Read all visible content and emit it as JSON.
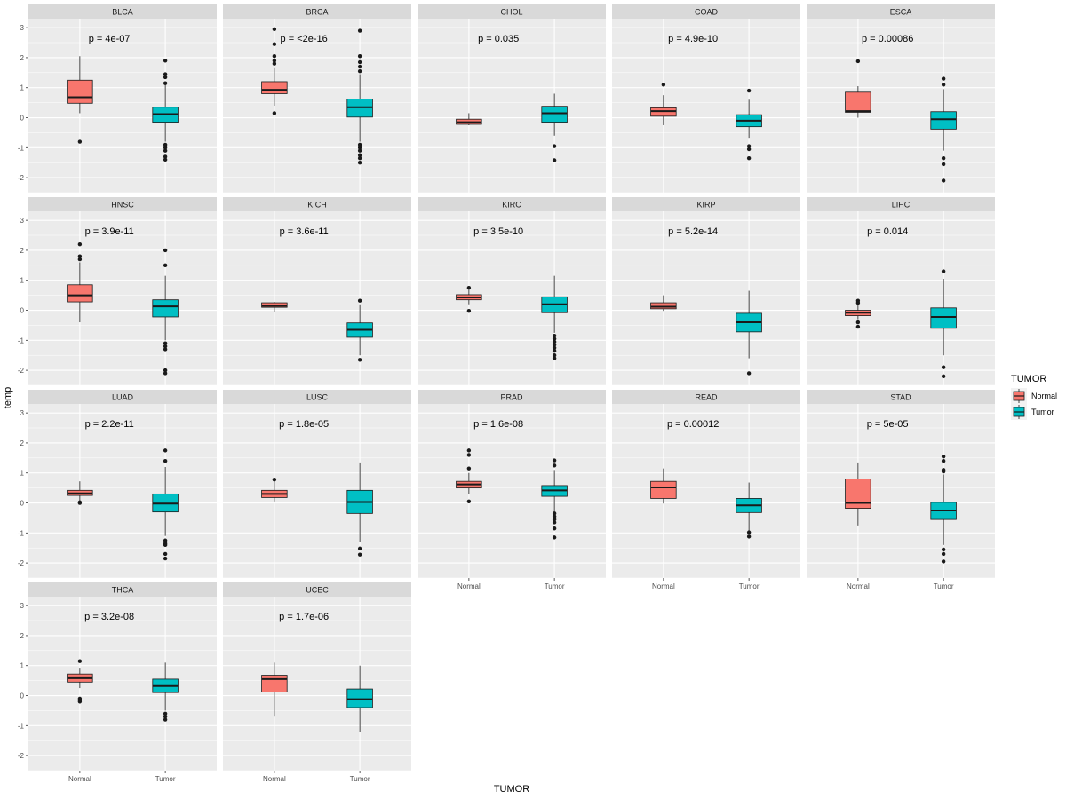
{
  "chart_data": {
    "type": "boxplot",
    "facet_layout": "wrap, 5 columns",
    "xlabel": "TUMOR",
    "ylabel": "temp",
    "categories": [
      "Normal",
      "Tumor"
    ],
    "y_ticks": [
      3,
      2,
      1,
      0,
      -1,
      -2
    ],
    "ylim": [
      -2.5,
      3.3
    ],
    "legend": {
      "title": "TUMOR",
      "position": "right",
      "items": [
        {
          "label": "Normal",
          "color": "#F8766D"
        },
        {
          "label": "Tumor",
          "color": "#00BFC4"
        }
      ]
    },
    "colors": {
      "panel_bg": "#EBEBEB",
      "grid": "#FFFFFF",
      "strip_bg": "#D9D9D9",
      "normal": "#F8766D",
      "tumor": "#00BFC4",
      "outline": "#1A1A1A"
    },
    "panels": [
      {
        "name": "BLCA",
        "p": "p = 4e-07",
        "normal": {
          "lo": 0.15,
          "q1": 0.48,
          "med": 0.68,
          "q3": 1.25,
          "hi": 2.05,
          "out": [
            -0.8
          ]
        },
        "tumor": {
          "lo": -0.8,
          "q1": -0.15,
          "med": 0.12,
          "q3": 0.35,
          "hi": 1.1,
          "out": [
            -0.9,
            -1.0,
            -1.1,
            -1.3,
            -1.4,
            1.15,
            1.35,
            1.45,
            1.9
          ]
        }
      },
      {
        "name": "BRCA",
        "p": "p = <2e-16",
        "normal": {
          "lo": 0.4,
          "q1": 0.8,
          "med": 0.93,
          "q3": 1.2,
          "hi": 1.65,
          "out": [
            0.15,
            1.8,
            1.9,
            2.05,
            2.45,
            2.95
          ]
        },
        "tumor": {
          "lo": -0.8,
          "q1": 0.02,
          "med": 0.35,
          "q3": 0.62,
          "hi": 1.45,
          "out": [
            -0.9,
            -1.0,
            -1.1,
            -1.25,
            -1.35,
            -1.5,
            1.55,
            1.7,
            1.85,
            2.05,
            2.9
          ]
        }
      },
      {
        "name": "CHOL",
        "p": "p = 0.035",
        "normal": {
          "lo": -0.25,
          "q1": -0.22,
          "med": -0.15,
          "q3": -0.05,
          "hi": 0.15,
          "out": []
        },
        "tumor": {
          "lo": -0.6,
          "q1": -0.15,
          "med": 0.15,
          "q3": 0.38,
          "hi": 0.8,
          "out": [
            -0.95,
            -1.42
          ]
        }
      },
      {
        "name": "COAD",
        "p": "p = 4.9e-10",
        "normal": {
          "lo": -0.25,
          "q1": 0.05,
          "med": 0.22,
          "q3": 0.33,
          "hi": 0.75,
          "out": [
            1.1
          ]
        },
        "tumor": {
          "lo": -0.7,
          "q1": -0.3,
          "med": -0.1,
          "q3": 0.1,
          "hi": 0.6,
          "out": [
            -0.95,
            -1.05,
            -1.35,
            0.9
          ]
        }
      },
      {
        "name": "ESCA",
        "p": "p = 0.00086",
        "normal": {
          "lo": 0.0,
          "q1": 0.18,
          "med": 0.22,
          "q3": 0.85,
          "hi": 1.05,
          "out": [
            1.88
          ]
        },
        "tumor": {
          "lo": -1.1,
          "q1": -0.38,
          "med": -0.05,
          "q3": 0.2,
          "hi": 0.95,
          "out": [
            -1.35,
            -1.55,
            -2.1,
            1.1,
            1.3
          ]
        }
      },
      {
        "name": "HNSC",
        "p": "p = 3.9e-11",
        "normal": {
          "lo": -0.4,
          "q1": 0.28,
          "med": 0.5,
          "q3": 0.85,
          "hi": 1.6,
          "out": [
            1.7,
            1.8,
            2.2
          ]
        },
        "tumor": {
          "lo": -1.0,
          "q1": -0.22,
          "med": 0.13,
          "q3": 0.35,
          "hi": 1.15,
          "out": [
            -1.1,
            -1.2,
            -1.3,
            -2.0,
            -2.1,
            1.5,
            2.0
          ]
        }
      },
      {
        "name": "KICH",
        "p": "p = 3.6e-11",
        "normal": {
          "lo": -0.05,
          "q1": 0.1,
          "med": 0.15,
          "q3": 0.25,
          "hi": 0.28,
          "out": []
        },
        "tumor": {
          "lo": -1.5,
          "q1": -0.9,
          "med": -0.65,
          "q3": -0.42,
          "hi": 0.2,
          "out": [
            -1.65,
            0.32
          ]
        }
      },
      {
        "name": "KIRC",
        "p": "p = 3.5e-10",
        "normal": {
          "lo": 0.2,
          "q1": 0.35,
          "med": 0.43,
          "q3": 0.52,
          "hi": 0.68,
          "out": [
            -0.02,
            0.75
          ]
        },
        "tumor": {
          "lo": -0.75,
          "q1": -0.08,
          "med": 0.2,
          "q3": 0.45,
          "hi": 1.15,
          "out": [
            -0.85,
            -0.95,
            -1.05,
            -1.15,
            -1.25,
            -1.35,
            -1.5,
            -1.6
          ]
        }
      },
      {
        "name": "KIRP",
        "p": "p = 5.2e-14",
        "normal": {
          "lo": -0.02,
          "q1": 0.05,
          "med": 0.12,
          "q3": 0.25,
          "hi": 0.5,
          "out": []
        },
        "tumor": {
          "lo": -1.6,
          "q1": -0.72,
          "med": -0.4,
          "q3": -0.1,
          "hi": 0.65,
          "out": [
            -2.1
          ]
        }
      },
      {
        "name": "LIHC",
        "p": "p = 0.014",
        "normal": {
          "lo": -0.3,
          "q1": -0.18,
          "med": -0.08,
          "q3": 0.0,
          "hi": 0.18,
          "out": [
            -0.4,
            -0.55,
            0.25,
            0.32
          ]
        },
        "tumor": {
          "lo": -1.5,
          "q1": -0.6,
          "med": -0.22,
          "q3": 0.08,
          "hi": 1.05,
          "out": [
            -1.9,
            -2.2,
            1.3
          ]
        }
      },
      {
        "name": "LUAD",
        "p": "p = 2.2e-11",
        "normal": {
          "lo": 0.05,
          "q1": 0.25,
          "med": 0.32,
          "q3": 0.42,
          "hi": 0.72,
          "out": [
            0.0,
            0.02
          ]
        },
        "tumor": {
          "lo": -1.1,
          "q1": -0.3,
          "med": -0.02,
          "q3": 0.3,
          "hi": 1.2,
          "out": [
            -1.25,
            -1.35,
            -1.4,
            -1.7,
            -1.85,
            1.4,
            1.75
          ]
        }
      },
      {
        "name": "LUSC",
        "p": "p = 1.8e-05",
        "normal": {
          "lo": 0.05,
          "q1": 0.18,
          "med": 0.3,
          "q3": 0.42,
          "hi": 0.72,
          "out": [
            0.78
          ]
        },
        "tumor": {
          "lo": -1.3,
          "q1": -0.35,
          "med": 0.03,
          "q3": 0.42,
          "hi": 1.35,
          "out": [
            -1.52,
            -1.72
          ]
        }
      },
      {
        "name": "PRAD",
        "p": "p = 1.6e-08",
        "normal": {
          "lo": 0.3,
          "q1": 0.5,
          "med": 0.62,
          "q3": 0.72,
          "hi": 1.0,
          "out": [
            0.05,
            1.15,
            1.6,
            1.75
          ]
        },
        "tumor": {
          "lo": -0.3,
          "q1": 0.22,
          "med": 0.42,
          "q3": 0.58,
          "hi": 1.1,
          "out": [
            -0.35,
            -0.45,
            -0.55,
            -0.65,
            -0.85,
            -1.15,
            1.25,
            1.42
          ]
        }
      },
      {
        "name": "READ",
        "p": "p = 0.00012",
        "normal": {
          "lo": -0.02,
          "q1": 0.15,
          "med": 0.52,
          "q3": 0.72,
          "hi": 1.15,
          "out": []
        },
        "tumor": {
          "lo": -0.92,
          "q1": -0.32,
          "med": -0.08,
          "q3": 0.15,
          "hi": 0.68,
          "out": [
            -0.98,
            -1.12
          ]
        }
      },
      {
        "name": "STAD",
        "p": "p = 5e-05",
        "normal": {
          "lo": -0.75,
          "q1": -0.18,
          "med": 0.0,
          "q3": 0.8,
          "hi": 1.35,
          "out": []
        },
        "tumor": {
          "lo": -1.4,
          "q1": -0.55,
          "med": -0.25,
          "q3": 0.02,
          "hi": 0.95,
          "out": [
            -1.55,
            -1.7,
            -1.95,
            1.05,
            1.1,
            1.4,
            1.55
          ]
        }
      },
      {
        "name": "THCA",
        "p": "p = 3.2e-08",
        "normal": {
          "lo": 0.25,
          "q1": 0.45,
          "med": 0.58,
          "q3": 0.72,
          "hi": 0.9,
          "out": [
            -0.1,
            -0.15,
            -0.2,
            1.15
          ]
        },
        "tumor": {
          "lo": -0.5,
          "q1": 0.1,
          "med": 0.32,
          "q3": 0.55,
          "hi": 1.1,
          "out": [
            -0.6,
            -0.7,
            -0.8
          ]
        }
      },
      {
        "name": "UCEC",
        "p": "p = 1.7e-06",
        "normal": {
          "lo": -0.7,
          "q1": 0.12,
          "med": 0.55,
          "q3": 0.68,
          "hi": 1.1,
          "out": []
        },
        "tumor": {
          "lo": -1.2,
          "q1": -0.4,
          "med": -0.12,
          "q3": 0.22,
          "hi": 1.0,
          "out": []
        }
      }
    ]
  }
}
